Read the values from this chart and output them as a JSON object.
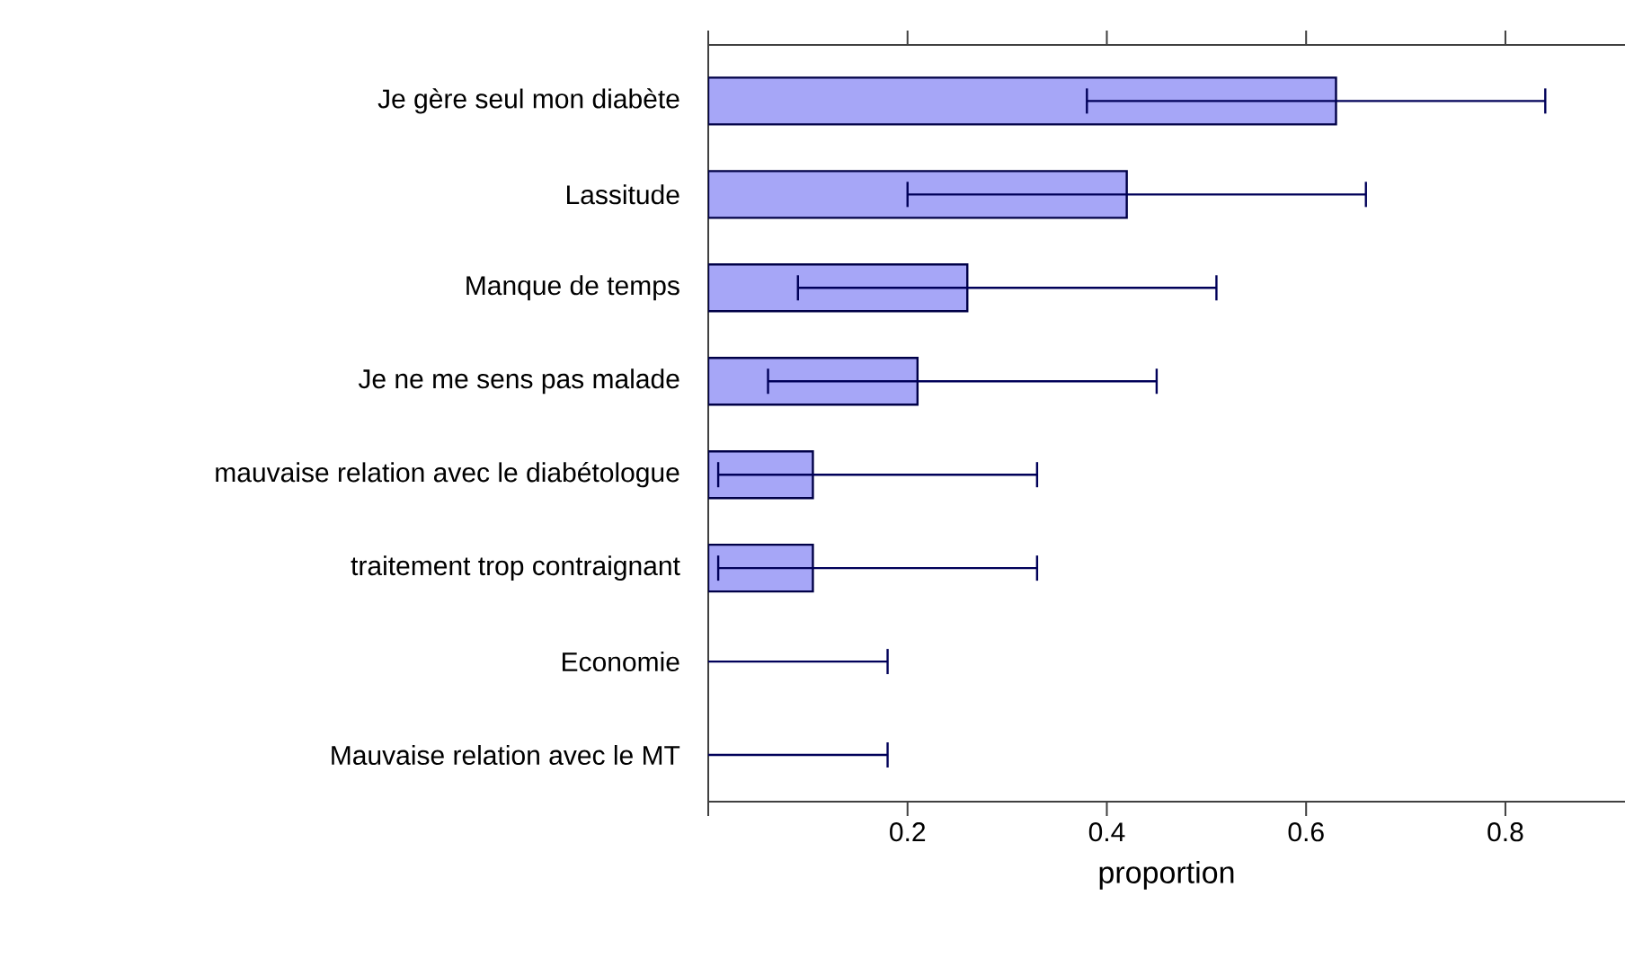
{
  "chart_data": {
    "type": "bar",
    "orientation": "horizontal",
    "xlabel": "proportion",
    "categories": [
      "Je gère seul mon diabète",
      "Lassitude",
      "Manque de temps",
      "Je ne me sens pas malade",
      "mauvaise relation avec le diabétologue",
      "traitement   trop contraignant",
      "Economie",
      "Mauvaise relation avec le MT"
    ],
    "values": [
      0.63,
      0.42,
      0.26,
      0.21,
      0.105,
      0.105,
      0,
      0
    ],
    "errors": [
      [
        0.38,
        0.84
      ],
      [
        0.2,
        0.66
      ],
      [
        0.09,
        0.51
      ],
      [
        0.06,
        0.45
      ],
      [
        0.01,
        0.33
      ],
      [
        0.01,
        0.33
      ],
      [
        0,
        0.18
      ],
      [
        0,
        0.18
      ]
    ],
    "color": "#a6a6f7",
    "xlim": [
      0,
      0.92
    ],
    "xticks": [
      {
        "value": 0,
        "label": null
      },
      0.2,
      0.4,
      0.6,
      0.8
    ]
  }
}
